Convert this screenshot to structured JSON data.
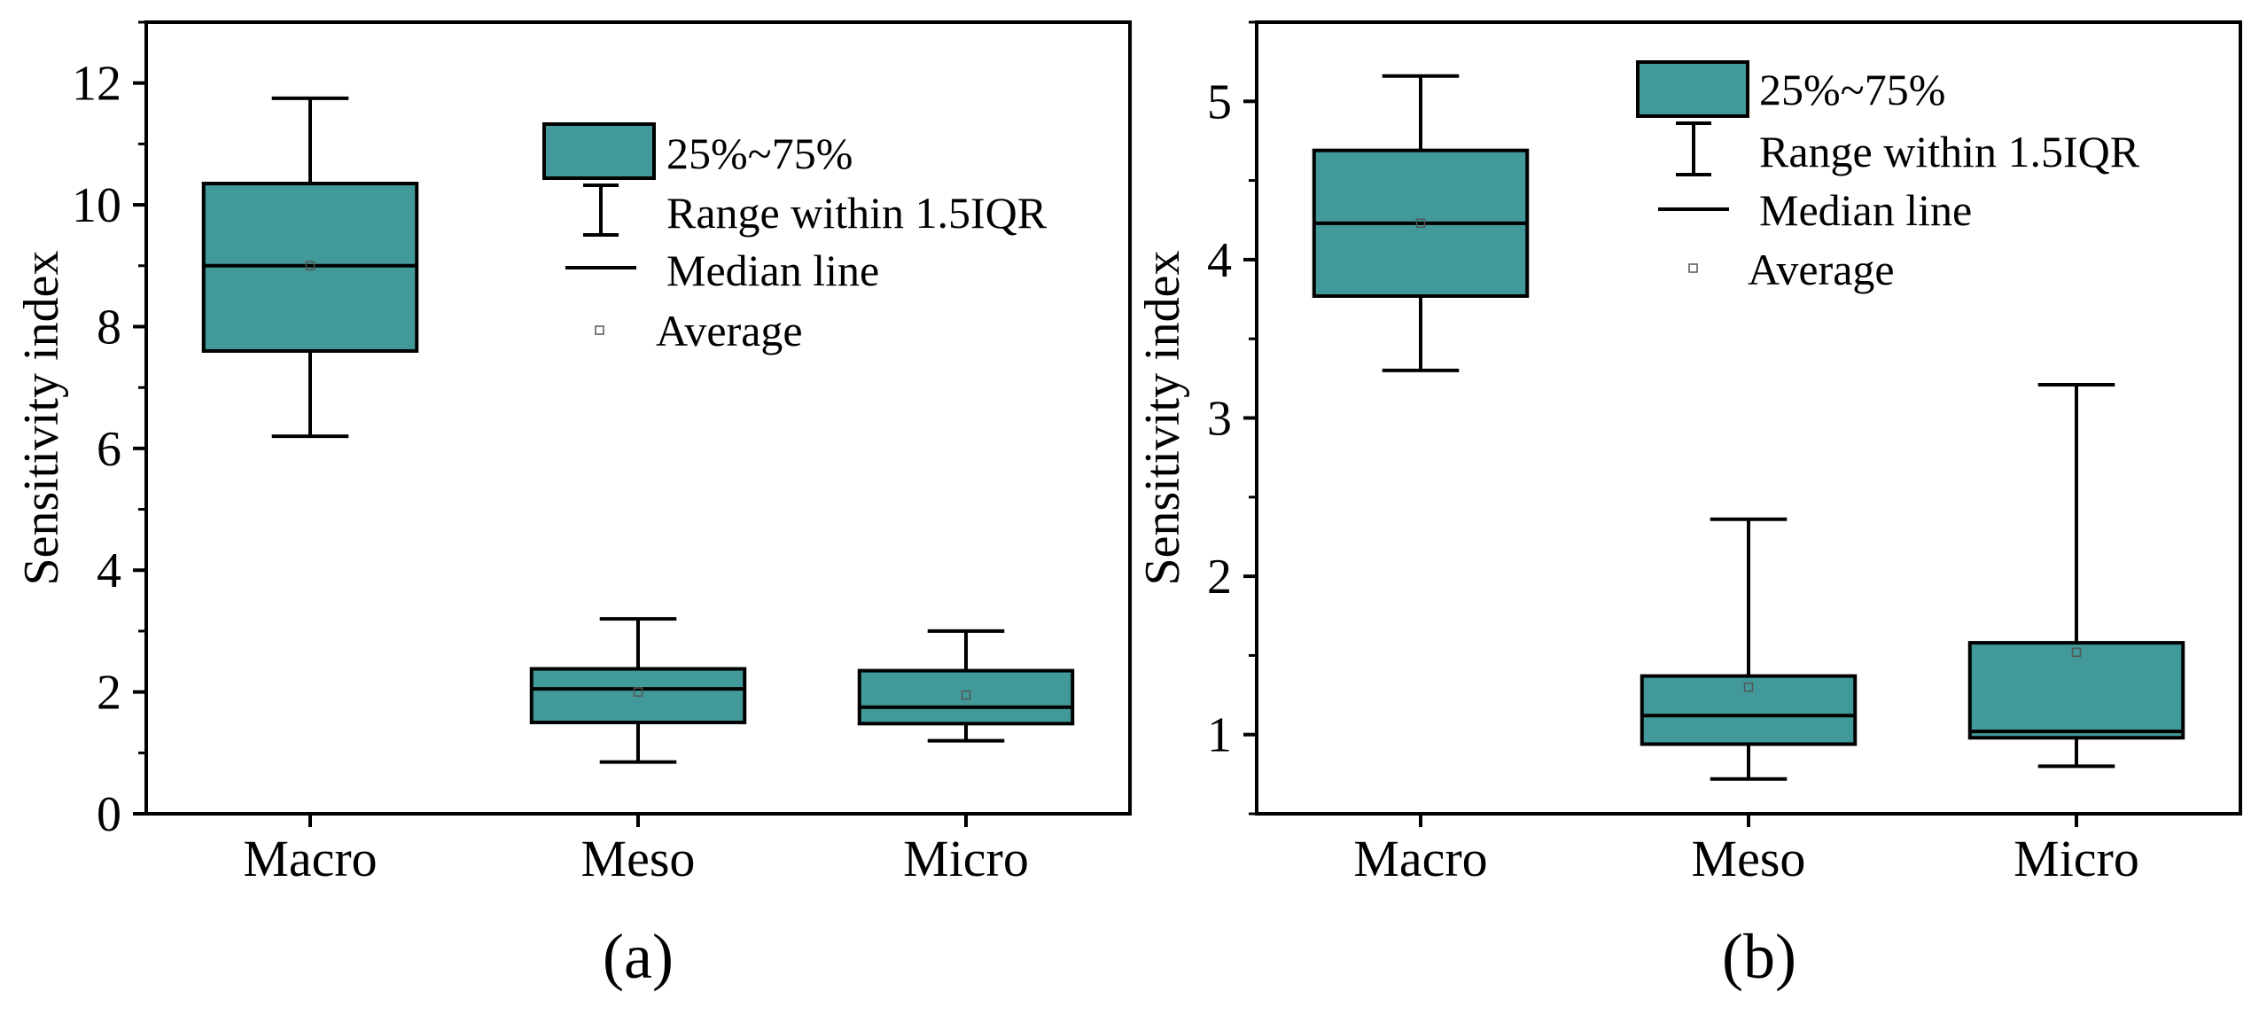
{
  "colors": {
    "box_fill": "#42999A",
    "stroke": "#000000",
    "mean_marker": "#555555"
  },
  "chart_data": [
    {
      "type": "box",
      "panel_label": "(a)",
      "ylabel": "Sensitivity index",
      "xlabel": "",
      "categories": [
        "Macro",
        "Meso",
        "Micro"
      ],
      "ylim": [
        0,
        13
      ],
      "yticks": [
        0,
        2,
        4,
        6,
        8,
        10,
        12
      ],
      "ytick_labels": [
        "0",
        "2",
        "4",
        "6",
        "8",
        "10",
        "12"
      ],
      "minor_ytick_step": 1,
      "boxes": [
        {
          "whisker_low": 6.2,
          "q1": 7.6,
          "median": 9.0,
          "q3": 10.35,
          "whisker_high": 11.75,
          "mean": 9.0
        },
        {
          "whisker_low": 0.85,
          "q1": 1.5,
          "median": 2.05,
          "q3": 2.38,
          "whisker_high": 3.2,
          "mean": 2.0
        },
        {
          "whisker_low": 1.2,
          "q1": 1.48,
          "median": 1.75,
          "q3": 2.35,
          "whisker_high": 3.0,
          "mean": 1.95
        }
      ],
      "legend": {
        "position": "top-right",
        "box_label": "25%~75%",
        "range_label": "Range within 1.5IQR",
        "median_label": "Median line",
        "mean_label": "Average"
      }
    },
    {
      "type": "box",
      "panel_label": "(b)",
      "ylabel": "Sensitivity index",
      "xlabel": "",
      "categories": [
        "Macro",
        "Meso",
        "Micro"
      ],
      "ylim": [
        0.5,
        5.5
      ],
      "yticks": [
        1,
        2,
        3,
        4,
        5
      ],
      "ytick_labels": [
        "1",
        "2",
        "3",
        "4",
        "5"
      ],
      "minor_ytick_step": 0.5,
      "boxes": [
        {
          "whisker_low": 3.3,
          "q1": 3.77,
          "median": 4.23,
          "q3": 4.69,
          "whisker_high": 5.16,
          "mean": 4.23
        },
        {
          "whisker_low": 0.72,
          "q1": 0.94,
          "median": 1.12,
          "q3": 1.37,
          "whisker_high": 2.36,
          "mean": 1.3
        },
        {
          "whisker_low": 0.8,
          "q1": 0.98,
          "median": 1.02,
          "q3": 1.58,
          "whisker_high": 3.21,
          "mean": 1.52
        }
      ],
      "legend": {
        "position": "top-center",
        "box_label": "25%~75%",
        "range_label": "Range within 1.5IQR",
        "median_label": "Median line",
        "mean_label": "Average"
      }
    }
  ]
}
